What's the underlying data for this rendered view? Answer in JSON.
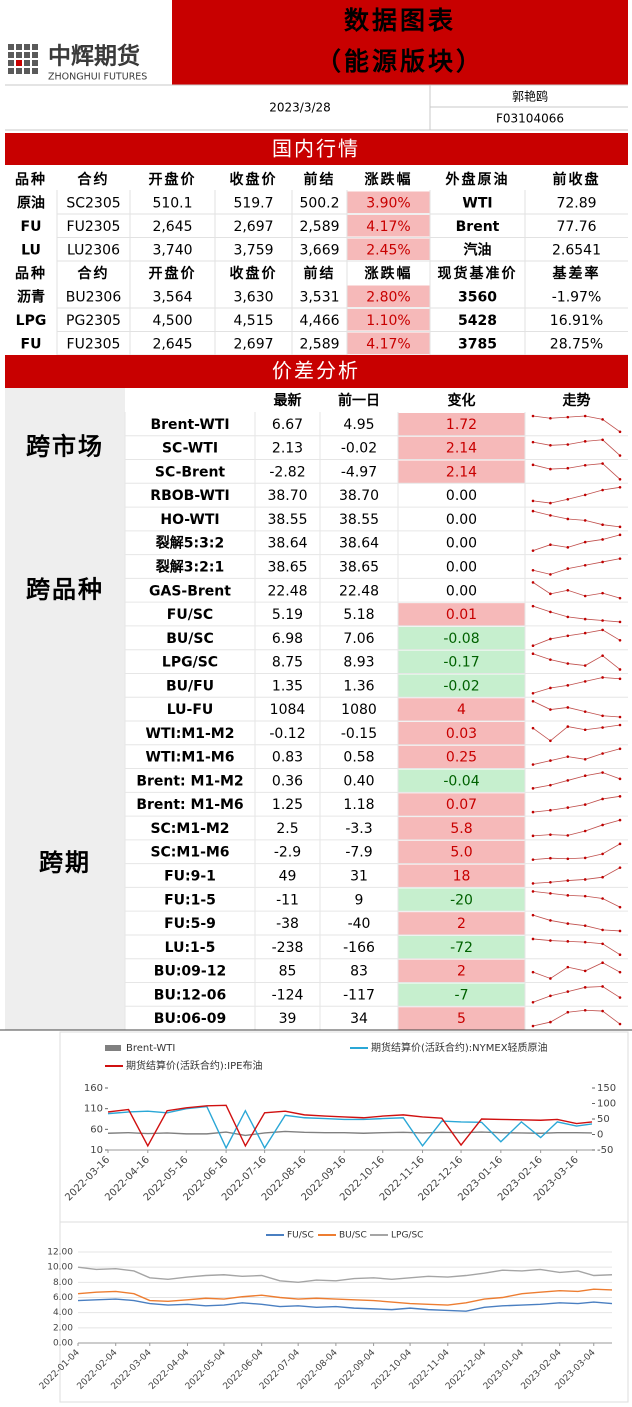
{
  "header": {
    "logo_cn": "中辉期货",
    "logo_en": "ZHONGHUI FUTURES",
    "title": "数据图表",
    "subtitle": "（能源版块）",
    "date": "2023/3/28",
    "author": "郭艳鸥",
    "license": "F03104066"
  },
  "market": {
    "title": "国内行情",
    "tables": [
      {
        "columns": [
          "品种",
          "合约",
          "开盘价",
          "收盘价",
          "前结",
          "涨跌幅",
          "外盘原油",
          "前收盘"
        ],
        "rows": [
          [
            "原油",
            "SC2305",
            "510.1",
            "519.7",
            "500.2",
            "3.90%",
            "WTI",
            "72.89"
          ],
          [
            "FU",
            "FU2305",
            "2,645",
            "2,697",
            "2,589",
            "4.17%",
            "Brent",
            "77.76"
          ],
          [
            "LU",
            "LU2306",
            "3,740",
            "3,759",
            "3,669",
            "2.45%",
            "汽油",
            "2.6541"
          ]
        ]
      },
      {
        "columns": [
          "品种",
          "合约",
          "开盘价",
          "收盘价",
          "前结",
          "涨跌幅",
          "现货基准价",
          "基差率"
        ],
        "rows": [
          [
            "沥青",
            "BU2306",
            "3,564",
            "3,630",
            "3,531",
            "2.80%",
            "3560",
            "-1.97%"
          ],
          [
            "LPG",
            "PG2305",
            "4,500",
            "4,515",
            "4,466",
            "1.10%",
            "5428",
            "16.91%"
          ],
          [
            "FU",
            "FU2305",
            "2,645",
            "2,697",
            "2,589",
            "4.17%",
            "3785",
            "28.75%"
          ]
        ]
      }
    ]
  },
  "spread": {
    "title": "价差分析",
    "columns": [
      "最新",
      "前一日",
      "变化",
      "走势"
    ],
    "groups": [
      {
        "label": "跨市场",
        "rows": [
          {
            "name": "Brent-WTI",
            "latest": "6.67",
            "prev": "4.95",
            "change": "1.72",
            "trend": [
              4.6,
              4.4,
              4.5,
              4.6,
              4.3,
              3.2
            ]
          },
          {
            "name": "SC-WTI",
            "latest": "2.13",
            "prev": "-0.02",
            "change": "2.14",
            "trend": [
              1.2,
              0.8,
              0.9,
              1.3,
              1.5,
              -0.5
            ]
          },
          {
            "name": "SC-Brent",
            "latest": "-2.82",
            "prev": "-4.97",
            "change": "2.14",
            "trend": [
              -1.5,
              -2.5,
              -2.3,
              -1.6,
              -1.2,
              -4.9
            ]
          }
        ]
      },
      {
        "label": "跨品种",
        "rows": [
          {
            "name": "RBOB-WTI",
            "latest": "38.70",
            "prev": "38.70",
            "change": "0.00",
            "trend": [
              36.2,
              35.8,
              36.5,
              37.3,
              38.2,
              38.7
            ]
          },
          {
            "name": "HO-WTI",
            "latest": "38.55",
            "prev": "38.55",
            "change": "0.00",
            "trend": [
              40.1,
              39.5,
              39.0,
              38.8,
              38.2,
              37.9
            ]
          },
          {
            "name": "裂解5:3:2",
            "latest": "38.64",
            "prev": "38.64",
            "change": "0.00",
            "trend": [
              36.5,
              37.4,
              37.0,
              37.8,
              38.2,
              38.9
            ]
          },
          {
            "name": "裂解3:2:1",
            "latest": "38.65",
            "prev": "38.65",
            "change": "0.00",
            "trend": [
              37.4,
              36.9,
              37.6,
              38.0,
              38.4,
              38.8
            ]
          },
          {
            "name": "GAS-Brent",
            "latest": "22.48",
            "prev": "22.48",
            "change": "0.00",
            "trend": [
              24.0,
              22.4,
              22.9,
              22.1,
              22.5,
              21.8
            ]
          },
          {
            "name": "FU/SC",
            "latest": "5.19",
            "prev": "5.18",
            "change": "0.01",
            "trend": [
              5.4,
              5.32,
              5.25,
              5.22,
              5.2,
              5.18
            ]
          },
          {
            "name": "BU/SC",
            "latest": "6.98",
            "prev": "7.06",
            "change": "-0.08",
            "trend": [
              6.6,
              6.75,
              6.82,
              6.88,
              6.95,
              6.72
            ]
          },
          {
            "name": "LPG/SC",
            "latest": "8.75",
            "prev": "8.93",
            "change": "-0.17",
            "trend": [
              9.4,
              9.1,
              8.9,
              8.8,
              9.3,
              8.6
            ]
          },
          {
            "name": "BU/FU",
            "latest": "1.35",
            "prev": "1.36",
            "change": "-0.02",
            "trend": [
              1.24,
              1.28,
              1.3,
              1.33,
              1.36,
              1.35
            ]
          }
        ]
      },
      {
        "label": "跨期",
        "rows": [
          {
            "name": "LU-FU",
            "latest": "1084",
            "prev": "1080",
            "change": "4",
            "trend": [
              1120,
              1100,
              1105,
              1095,
              1085,
              1082
            ]
          },
          {
            "name": "WTI:M1-M2",
            "latest": "-0.12",
            "prev": "-0.15",
            "change": "0.03",
            "trend": [
              0.1,
              -0.3,
              0.15,
              0.05,
              0.12,
              0.2
            ]
          },
          {
            "name": "WTI:M1-M6",
            "latest": "0.83",
            "prev": "0.58",
            "change": "0.25",
            "trend": [
              0.2,
              0.35,
              0.5,
              0.4,
              0.62,
              0.8
            ]
          },
          {
            "name": "Brent: M1-M2",
            "latest": "0.36",
            "prev": "0.40",
            "change": "-0.04",
            "trend": [
              0.3,
              0.32,
              0.35,
              0.38,
              0.4,
              0.36
            ]
          },
          {
            "name": "Brent: M1-M6",
            "latest": "1.25",
            "prev": "1.18",
            "change": "0.07",
            "trend": [
              0.8,
              0.85,
              0.92,
              1.0,
              1.15,
              1.22
            ]
          },
          {
            "name": "SC:M1-M2",
            "latest": "2.5",
            "prev": "-3.3",
            "change": "5.8",
            "trend": [
              -4.0,
              -3.5,
              -3.8,
              -2.0,
              0.5,
              2.5
            ]
          },
          {
            "name": "SC:M1-M6",
            "latest": "-2.9",
            "prev": "-7.9",
            "change": "5.0",
            "trend": [
              -8.5,
              -8.0,
              -8.2,
              -7.9,
              -6.5,
              -3.0
            ]
          },
          {
            "name": "FU:9-1",
            "latest": "49",
            "prev": "31",
            "change": "18",
            "trend": [
              20,
              22,
              25,
              27,
              31,
              48
            ]
          },
          {
            "name": "FU:1-5",
            "latest": "-11",
            "prev": "9",
            "change": "-20",
            "trend": [
              30,
              25,
              20,
              18,
              12,
              -10
            ]
          },
          {
            "name": "FU:5-9",
            "latest": "-38",
            "prev": "-40",
            "change": "2",
            "trend": [
              -25,
              -30,
              -33,
              -35,
              -39,
              -40
            ]
          },
          {
            "name": "LU:1-5",
            "latest": "-238",
            "prev": "-166",
            "change": "-72",
            "trend": [
              -140,
              -150,
              -155,
              -160,
              -170,
              -238
            ]
          },
          {
            "name": "BU:09-12",
            "latest": "85",
            "prev": "83",
            "change": "2",
            "trend": [
              70,
              60,
              78,
              72,
              85,
              70
            ]
          },
          {
            "name": "BU:12-06",
            "latest": "-124",
            "prev": "-117",
            "change": "-7",
            "trend": [
              -135,
              -120,
              -110,
              -100,
              -98,
              -124
            ]
          },
          {
            "name": "BU:06-09",
            "latest": "39",
            "prev": "34",
            "change": "5",
            "trend": [
              20,
              30,
              55,
              60,
              58,
              25
            ]
          }
        ]
      }
    ]
  },
  "chart_data": [
    {
      "type": "line",
      "x": [
        "2022-03-16",
        "2022-04-01",
        "2022-04-16",
        "2022-05-01",
        "2022-05-16",
        "2022-06-01",
        "2022-06-16",
        "2022-07-01",
        "2022-07-16",
        "2022-08-01",
        "2022-08-16",
        "2022-09-01",
        "2022-09-16",
        "2022-10-01",
        "2022-10-16",
        "2022-11-01",
        "2022-11-16",
        "2022-12-01",
        "2022-12-16",
        "2023-01-01",
        "2023-01-16",
        "2023-02-01",
        "2023-02-16",
        "2023-03-01",
        "2023-03-16",
        "2023-03-28"
      ],
      "series": [
        {
          "name": "Brent-WTI",
          "color": "#808080",
          "axis": "y2",
          "values": [
            4,
            6,
            3,
            5,
            2,
            2,
            8,
            -3,
            5,
            10,
            7,
            6,
            6,
            4,
            6,
            7,
            5,
            7,
            6,
            8,
            6,
            5,
            4,
            6,
            6,
            5
          ]
        },
        {
          "name": "期货结算价(活跃合约):NYMEX轻质原油",
          "color": "#2aa7d6",
          "values": [
            98,
            102,
            104,
            100,
            110,
            115,
            15,
            105,
            15,
            94,
            88,
            86,
            84,
            84,
            86,
            88,
            20,
            80,
            78,
            77,
            30,
            78,
            40,
            78,
            68,
            73
          ]
        },
        {
          "name": "期货结算价(活跃合约):IPE布油",
          "color": "#d01010",
          "values": [
            102,
            108,
            20,
            105,
            112,
            117,
            118,
            20,
            100,
            104,
            95,
            92,
            90,
            88,
            92,
            95,
            90,
            87,
            22,
            85,
            84,
            83,
            82,
            84,
            74,
            78
          ]
        }
      ],
      "ylim": [
        10,
        160
      ],
      "yticks": [
        10,
        60,
        110,
        160
      ],
      "y2lim": [
        -50,
        150
      ],
      "y2ticks": [
        -50,
        0,
        50,
        100,
        150
      ],
      "xticks": [
        "2022-03-16",
        "2022-04-16",
        "2022-05-16",
        "2022-06-16",
        "2022-07-16",
        "2022-08-16",
        "2022-09-16",
        "2022-10-16",
        "2022-11-16",
        "2022-12-16",
        "2023-01-16",
        "2023-02-16",
        "2023-03-16"
      ],
      "grid": false
    },
    {
      "type": "line",
      "x": [
        "2022-01-04",
        "2022-01-19",
        "2022-02-04",
        "2022-02-19",
        "2022-03-04",
        "2022-03-19",
        "2022-04-04",
        "2022-04-19",
        "2022-05-04",
        "2022-05-19",
        "2022-06-04",
        "2022-06-19",
        "2022-07-04",
        "2022-07-19",
        "2022-08-04",
        "2022-08-19",
        "2022-09-04",
        "2022-09-19",
        "2022-10-04",
        "2022-10-19",
        "2022-11-04",
        "2022-11-19",
        "2022-12-04",
        "2022-12-19",
        "2023-01-04",
        "2023-01-19",
        "2023-02-04",
        "2023-02-19",
        "2023-03-04",
        "2023-03-19"
      ],
      "series": [
        {
          "name": "FU/SC",
          "color": "#4a7fc1",
          "values": [
            5.6,
            5.7,
            5.8,
            5.6,
            5.2,
            5.0,
            5.1,
            4.9,
            5.0,
            5.3,
            5.1,
            4.8,
            4.9,
            4.7,
            4.8,
            4.6,
            4.5,
            4.4,
            4.6,
            4.4,
            4.3,
            4.2,
            4.7,
            4.9,
            5.0,
            5.1,
            5.3,
            5.2,
            5.4,
            5.2
          ]
        },
        {
          "name": "BU/SC",
          "color": "#ed7d31",
          "values": [
            6.5,
            6.7,
            6.8,
            6.5,
            5.6,
            5.5,
            5.7,
            5.9,
            5.8,
            6.1,
            6.3,
            6.0,
            5.8,
            5.9,
            5.8,
            5.7,
            5.6,
            5.4,
            5.2,
            5.1,
            5.0,
            5.3,
            5.8,
            6.0,
            6.5,
            6.7,
            6.9,
            6.8,
            7.1,
            7.0
          ]
        },
        {
          "name": "LPG/SC",
          "color": "#a5a5a5",
          "values": [
            10.0,
            9.7,
            9.8,
            9.5,
            8.6,
            8.4,
            8.7,
            8.9,
            9.0,
            8.8,
            8.9,
            8.2,
            8.0,
            8.3,
            8.2,
            8.5,
            8.6,
            8.4,
            8.6,
            8.8,
            8.7,
            8.9,
            9.2,
            9.6,
            9.5,
            9.7,
            9.3,
            9.5,
            8.9,
            9.0
          ]
        }
      ],
      "ylim": [
        0,
        12
      ],
      "yticks": [
        {
          "value": 0,
          "label": "0.00"
        },
        {
          "value": 2,
          "label": "2.00"
        },
        {
          "value": 4,
          "label": "4.00"
        },
        {
          "value": 6,
          "label": "6.00"
        },
        {
          "value": 8,
          "label": "8.00"
        },
        {
          "value": 10,
          "label": "10.00"
        },
        {
          "value": 12,
          "label": "12.00"
        }
      ],
      "xticks": [
        "2022-01-04",
        "2022-02-04",
        "2022-03-04",
        "2022-04-04",
        "2022-05-04",
        "2022-06-04",
        "2022-07-04",
        "2022-08-04",
        "2022-09-04",
        "2022-10-04",
        "2022-11-04",
        "2022-12-04",
        "2023-01-04",
        "2023-02-04",
        "2023-03-04"
      ],
      "grid": true
    }
  ]
}
